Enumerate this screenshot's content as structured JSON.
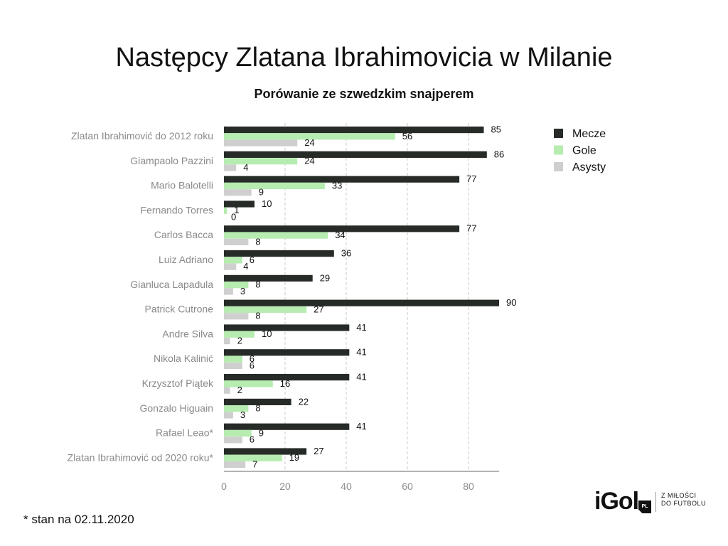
{
  "title": "Następcy Zlatana Ibrahimovicia w Milanie",
  "subtitle": "Porówanie ze szwedzkim snajperem",
  "footnote": "* stan na 02.11.2020",
  "logo": {
    "text": "iGol",
    "badge": "PL",
    "tagline_1": "Z MIŁOŚCI",
    "tagline_2": "DO FUTBOLU"
  },
  "colors": {
    "mecze": "#262b27",
    "gole": "#b6ecb0",
    "asysty": "#cfcfcf",
    "grid": "#c8c8c8",
    "axis_label": "#8a8a8a"
  },
  "chart_data": {
    "type": "bar",
    "orientation": "horizontal",
    "title": "Następcy Zlatana Ibrahimovicia w Milanie",
    "subtitle": "Porówanie ze szwedzkim snajperem",
    "categories": [
      "Zlatan Ibrahimović do 2012 roku",
      "Giampaolo Pazzini",
      "Mario Balotelli",
      "Fernando Torres",
      "Carlos Bacca",
      "Luiz Adriano",
      "Gianluca Lapadula",
      "Patrick Cutrone",
      "Andre Silva",
      "Nikola Kalinić",
      "Krzysztof Piątek",
      "Gonzalo Higuain",
      "Rafael Leao*",
      "Zlatan Ibrahimović od 2020 roku*"
    ],
    "series": [
      {
        "name": "Mecze",
        "color": "#262b27",
        "values": [
          85,
          86,
          77,
          10,
          77,
          36,
          29,
          90,
          41,
          41,
          41,
          22,
          41,
          27
        ]
      },
      {
        "name": "Gole",
        "color": "#b6ecb0",
        "values": [
          56,
          24,
          33,
          1,
          34,
          6,
          8,
          27,
          10,
          6,
          16,
          8,
          9,
          19
        ]
      },
      {
        "name": "Asysty",
        "color": "#cfcfcf",
        "values": [
          24,
          4,
          9,
          0,
          8,
          4,
          3,
          8,
          2,
          6,
          2,
          3,
          6,
          7
        ]
      }
    ],
    "xlim": [
      0,
      90
    ],
    "xticks": [
      0,
      20,
      40,
      60,
      80
    ],
    "grid": true,
    "legend": "top-right"
  }
}
